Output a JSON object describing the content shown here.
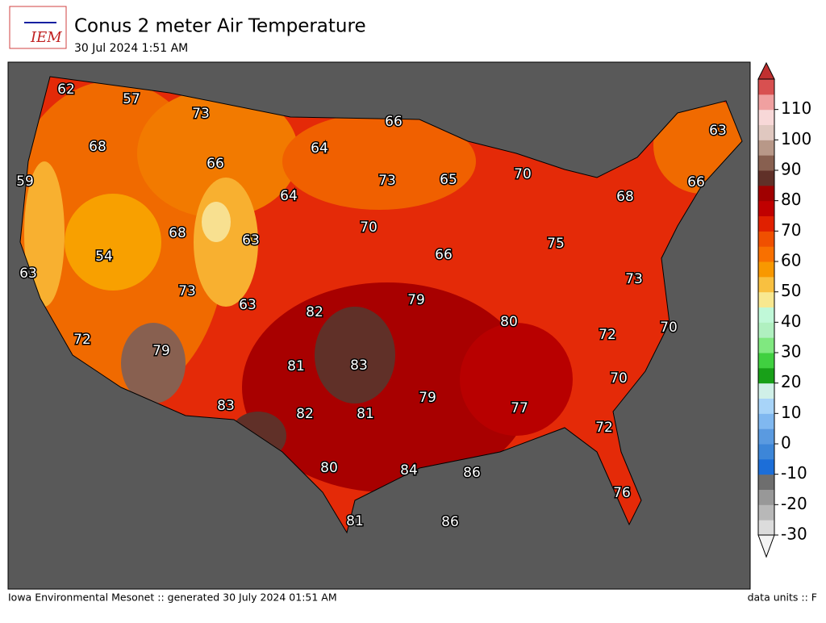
{
  "header": {
    "logo": "IEM",
    "title": "Conus 2 meter Air Temperature",
    "subtitle": "30 Jul 2024 1:51 AM"
  },
  "map_labels": [
    62,
    57,
    73,
    66,
    63,
    68,
    64,
    66,
    59,
    73,
    65,
    70,
    66,
    64,
    68,
    70,
    68,
    63,
    75,
    54,
    66,
    63,
    73,
    73,
    79,
    63,
    82,
    80,
    70,
    72,
    72,
    79,
    83,
    81,
    70,
    79,
    77,
    83,
    82,
    81,
    72,
    80,
    84,
    86,
    76,
    81,
    86
  ],
  "colorbar": {
    "clim": [
      -30,
      120
    ],
    "ticks": [
      -30,
      -20,
      -10,
      0,
      10,
      20,
      30,
      40,
      50,
      60,
      70,
      80,
      90,
      100,
      110
    ],
    "colors": [
      "#dcdcdc",
      "#b8b8b8",
      "#989898",
      "#6e6e6e",
      "#1c6ed8",
      "#3d86d8",
      "#5a9ae0",
      "#80b8f0",
      "#a8d4f8",
      "#d0f0e8",
      "#18a018",
      "#40d040",
      "#80e880",
      "#b0f0c0",
      "#c0f8d8",
      "#f8e890",
      "#f8c040",
      "#f89800",
      "#f87000",
      "#f05000",
      "#e02000",
      "#c00000",
      "#a00000",
      "#603028",
      "#886050",
      "#b89888",
      "#e0c8c0",
      "#f8d8d8",
      "#f0a0a0",
      "#d85050"
    ],
    "under_color": "#f4f4f4",
    "over_color": "#c03030"
  },
  "footer": {
    "left": "Iowa Environmental Mesonet :: generated 30 July 2024 01:51 AM",
    "right": "data units :: F"
  }
}
